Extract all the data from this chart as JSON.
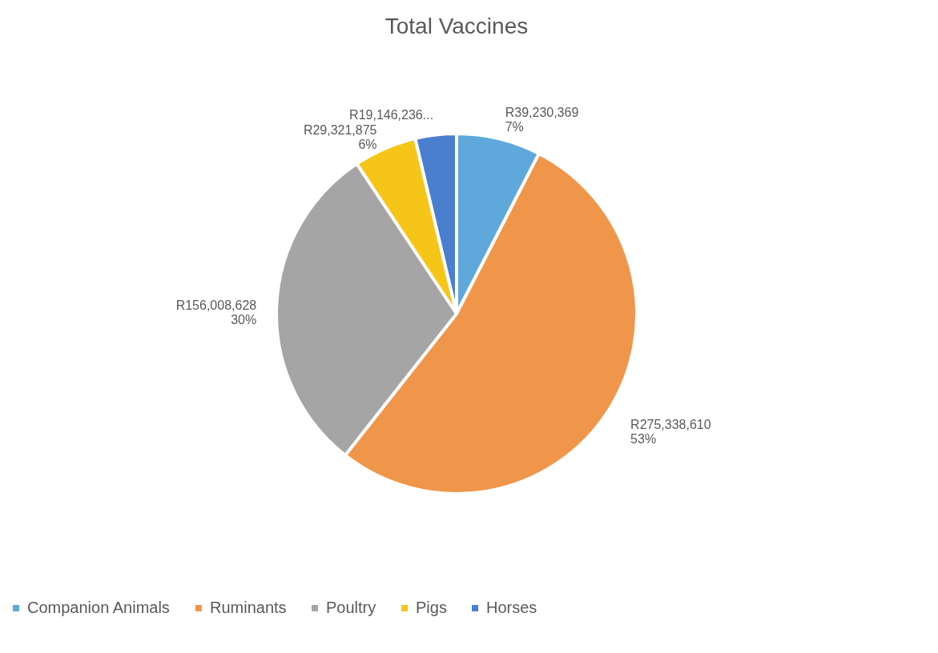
{
  "chart_data": {
    "type": "pie",
    "title": "Total Vaccines",
    "categories": [
      "Companion Animals",
      "Ruminants",
      "Poultry",
      "Pigs",
      "Horses"
    ],
    "values": [
      39230369,
      275338610,
      156008628,
      29321875,
      19146236
    ],
    "colors": [
      "#5ea8dc",
      "#f0964a",
      "#a5a5a5",
      "#f5c518",
      "#4a7fcf"
    ],
    "value_labels": [
      "R39,230,369\n7%",
      "R275,338,610\n53%",
      "R156,008,628\n30%",
      "R29,321,875\n6%",
      "R19,146,236..."
    ],
    "legend": "bottom"
  }
}
